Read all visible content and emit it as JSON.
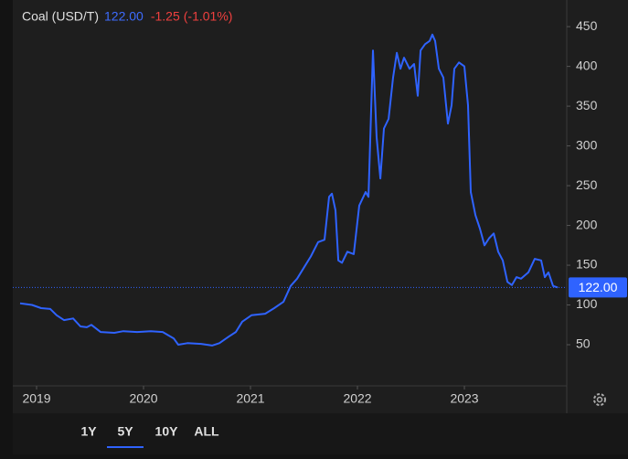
{
  "chart_data": {
    "type": "line",
    "title": "Coal (USD/T)",
    "last_value": {
      "value": 122,
      "label": "122.00"
    },
    "change": -1.25,
    "change_percent": {
      "value": -1.01,
      "label": "(-1.01%)"
    },
    "ranges": [
      "1Y",
      "5Y",
      "10Y",
      "ALL"
    ],
    "selected_range": "5Y",
    "xlim": [
      2018.846,
      2023.957
    ],
    "xticks": [
      2019,
      2020,
      2021,
      2022,
      2023
    ],
    "ylim": [
      0,
      472
    ],
    "yticks": [
      50,
      100,
      150,
      200,
      250,
      300,
      350,
      400,
      450
    ],
    "series": [
      {
        "name": "Coal (USD/T)",
        "color": "#2f63ff",
        "x": [
          2018.846,
          2018.957,
          2019.043,
          2019.128,
          2019.188,
          2019.256,
          2019.342,
          2019.41,
          2019.47,
          2019.513,
          2019.598,
          2019.726,
          2019.812,
          2019.94,
          2020.068,
          2020.179,
          2020.282,
          2020.325,
          2020.41,
          2020.538,
          2020.641,
          2020.709,
          2020.795,
          2020.863,
          2020.923,
          2021.009,
          2021.137,
          2021.222,
          2021.308,
          2021.376,
          2021.436,
          2021.504,
          2021.564,
          2021.632,
          2021.692,
          2021.735,
          2021.761,
          2021.795,
          2021.821,
          2021.855,
          2021.906,
          2021.966,
          2022.017,
          2022.077,
          2022.103,
          2022.145,
          2022.179,
          2022.214,
          2022.248,
          2022.291,
          2022.333,
          2022.368,
          2022.402,
          2022.436,
          2022.487,
          2022.53,
          2022.564,
          2022.59,
          2022.632,
          2022.675,
          2022.701,
          2022.726,
          2022.761,
          2022.803,
          2022.846,
          2022.88,
          2022.906,
          2022.949,
          2023.0,
          2023.034,
          2023.06,
          2023.103,
          2023.145,
          2023.188,
          2023.231,
          2023.274,
          2023.316,
          2023.359,
          2023.402,
          2023.444,
          2023.487,
          2023.53,
          2023.598,
          2023.658,
          2023.718,
          2023.752,
          2023.786,
          2023.829,
          2023.872
        ],
        "values": [
          102,
          100,
          96,
          95,
          87,
          81,
          83,
          73,
          72,
          75,
          66,
          65,
          67,
          66,
          67,
          66,
          58,
          50,
          52,
          51,
          49,
          52,
          60,
          66,
          79,
          87,
          89,
          96,
          104,
          124,
          133,
          148,
          161,
          179,
          182,
          236,
          240,
          219,
          156,
          153,
          167,
          164,
          225,
          242,
          236,
          420,
          311,
          259,
          322,
          334,
          386,
          417,
          397,
          411,
          397,
          403,
          363,
          420,
          428,
          432,
          440,
          432,
          397,
          386,
          328,
          351,
          397,
          405,
          400,
          351,
          242,
          213,
          196,
          175,
          184,
          190,
          167,
          156,
          129,
          125,
          135,
          133,
          141,
          158,
          156,
          135,
          141,
          124,
          122
        ]
      }
    ]
  }
}
